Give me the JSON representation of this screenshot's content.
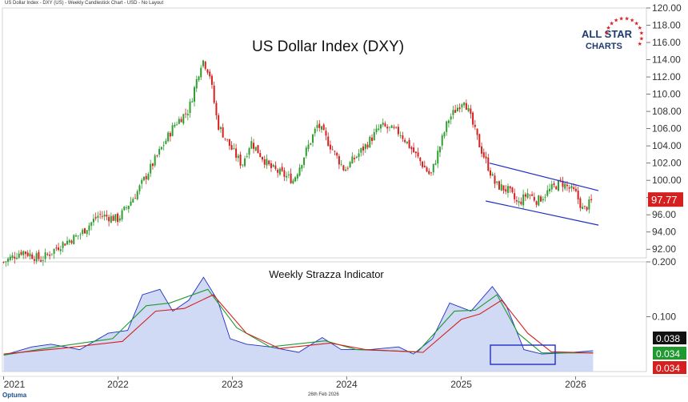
{
  "header": "US Dollar Index - DXY (US) - Weekly Candlestick Chart - USD - No Layout",
  "footer_date": "26th Feb 2026",
  "brand": "Optuma",
  "logo": {
    "line1": "ALL STAR",
    "line2": "CHARTS"
  },
  "colors": {
    "up": "#2e9e2e",
    "down": "#d62020",
    "channel": "#1f2fc4",
    "fill": "#c9d4f2",
    "bluLine": "#1f2fc4",
    "green": "#1f9a2f",
    "red": "#d62020"
  },
  "chart_data": [
    {
      "type": "candlestick",
      "title": "US Dollar Index (DXY)",
      "ylim": [
        91,
        120
      ],
      "yticks": [
        "92.00",
        "94.00",
        "96.00",
        "98.00",
        "100.00",
        "102.00",
        "104.00",
        "106.00",
        "108.00",
        "110.00",
        "112.00",
        "114.00",
        "116.00",
        "118.00",
        "120.00"
      ],
      "last_price": "97.77",
      "close_series": [
        {
          "date": "2021-01-01",
          "close": 90.5
        },
        {
          "date": "2021-03-01",
          "close": 91.8
        },
        {
          "date": "2021-05-01",
          "close": 90.8
        },
        {
          "date": "2021-07-01",
          "close": 92.5
        },
        {
          "date": "2021-09-01",
          "close": 93.7
        },
        {
          "date": "2021-11-01",
          "close": 96.0
        },
        {
          "date": "2022-01-01",
          "close": 95.5
        },
        {
          "date": "2022-03-01",
          "close": 98.5
        },
        {
          "date": "2022-05-01",
          "close": 102.5
        },
        {
          "date": "2022-07-01",
          "close": 106.5
        },
        {
          "date": "2022-08-15",
          "close": 108.2
        },
        {
          "date": "2022-09-27",
          "close": 114.1
        },
        {
          "date": "2022-10-20",
          "close": 112.5
        },
        {
          "date": "2022-11-15",
          "close": 106.5
        },
        {
          "date": "2023-01-01",
          "close": 103.5
        },
        {
          "date": "2023-02-01",
          "close": 101.8
        },
        {
          "date": "2023-03-01",
          "close": 104.5
        },
        {
          "date": "2023-05-01",
          "close": 101.5
        },
        {
          "date": "2023-07-15",
          "close": 100.0
        },
        {
          "date": "2023-10-01",
          "close": 106.5
        },
        {
          "date": "2023-12-25",
          "close": 101.2
        },
        {
          "date": "2024-03-01",
          "close": 104.0
        },
        {
          "date": "2024-04-20",
          "close": 106.3
        },
        {
          "date": "2024-06-20",
          "close": 105.5
        },
        {
          "date": "2024-09-25",
          "close": 100.5
        },
        {
          "date": "2024-11-20",
          "close": 107.0
        },
        {
          "date": "2025-01-10",
          "close": 109.5
        },
        {
          "date": "2025-03-01",
          "close": 104.0
        },
        {
          "date": "2025-04-20",
          "close": 99.5
        },
        {
          "date": "2025-06-01",
          "close": 98.8
        },
        {
          "date": "2025-07-01",
          "close": 97.2
        },
        {
          "date": "2025-08-01",
          "close": 98.5
        },
        {
          "date": "2025-09-01",
          "close": 97.6
        },
        {
          "date": "2025-10-15",
          "close": 99.0
        },
        {
          "date": "2025-11-15",
          "close": 99.8
        },
        {
          "date": "2026-01-01",
          "close": 98.5
        },
        {
          "date": "2026-01-25",
          "close": 96.5
        },
        {
          "date": "2026-02-26",
          "close": 97.77
        }
      ],
      "channel": {
        "upper": [
          {
            "date": "2025-04-01",
            "value": 102.0
          },
          {
            "date": "2026-03-15",
            "value": 98.8
          }
        ],
        "lower": [
          {
            "date": "2025-03-20",
            "value": 97.6
          },
          {
            "date": "2026-03-15",
            "value": 94.8
          }
        ]
      }
    },
    {
      "type": "area",
      "title": "Weekly Strazza Indicator",
      "ylim": [
        0,
        0.2
      ],
      "yticks": [
        "0.100",
        "0.200"
      ],
      "labels": [
        {
          "text": "0.038",
          "bg": "#111111"
        },
        {
          "text": "0.034",
          "bg": "#1f9a2f"
        },
        {
          "text": "0.034",
          "bg": "#d62020"
        }
      ],
      "series": [
        {
          "color": "blue",
          "values": [
            {
              "date": "2021-01-01",
              "value": 0.03
            },
            {
              "date": "2021-04-01",
              "value": 0.045
            },
            {
              "date": "2021-06-01",
              "value": 0.05
            },
            {
              "date": "2021-09-01",
              "value": 0.04
            },
            {
              "date": "2021-12-01",
              "value": 0.07
            },
            {
              "date": "2022-02-01",
              "value": 0.075
            },
            {
              "date": "2022-03-20",
              "value": 0.14
            },
            {
              "date": "2022-05-15",
              "value": 0.15
            },
            {
              "date": "2022-06-25",
              "value": 0.11
            },
            {
              "date": "2022-08-15",
              "value": 0.13
            },
            {
              "date": "2022-10-01",
              "value": 0.172
            },
            {
              "date": "2022-11-15",
              "value": 0.13
            },
            {
              "date": "2022-12-25",
              "value": 0.06
            },
            {
              "date": "2023-02-15",
              "value": 0.05
            },
            {
              "date": "2023-05-01",
              "value": 0.045
            },
            {
              "date": "2023-08-01",
              "value": 0.035
            },
            {
              "date": "2023-10-15",
              "value": 0.062
            },
            {
              "date": "2023-12-15",
              "value": 0.04
            },
            {
              "date": "2024-03-15",
              "value": 0.04
            },
            {
              "date": "2024-06-15",
              "value": 0.045
            },
            {
              "date": "2024-08-01",
              "value": 0.032
            },
            {
              "date": "2024-10-01",
              "value": 0.06
            },
            {
              "date": "2024-11-25",
              "value": 0.125
            },
            {
              "date": "2025-02-01",
              "value": 0.11
            },
            {
              "date": "2025-04-10",
              "value": 0.155
            },
            {
              "date": "2025-05-25",
              "value": 0.12
            },
            {
              "date": "2025-07-20",
              "value": 0.04
            },
            {
              "date": "2025-09-15",
              "value": 0.032
            },
            {
              "date": "2025-12-01",
              "value": 0.034
            },
            {
              "date": "2026-02-26",
              "value": 0.038
            }
          ]
        },
        {
          "color": "green",
          "values": [
            {
              "date": "2021-01-01",
              "value": 0.03
            },
            {
              "date": "2021-06-15",
              "value": 0.045
            },
            {
              "date": "2021-12-15",
              "value": 0.06
            },
            {
              "date": "2022-04-01",
              "value": 0.12
            },
            {
              "date": "2022-06-15",
              "value": 0.125
            },
            {
              "date": "2022-10-15",
              "value": 0.15
            },
            {
              "date": "2023-01-15",
              "value": 0.08
            },
            {
              "date": "2023-05-01",
              "value": 0.045
            },
            {
              "date": "2023-10-25",
              "value": 0.056
            },
            {
              "date": "2024-02-01",
              "value": 0.04
            },
            {
              "date": "2024-08-15",
              "value": 0.036
            },
            {
              "date": "2024-12-10",
              "value": 0.11
            },
            {
              "date": "2025-02-15",
              "value": 0.112
            },
            {
              "date": "2025-04-25",
              "value": 0.14
            },
            {
              "date": "2025-07-01",
              "value": 0.07
            },
            {
              "date": "2025-09-15",
              "value": 0.034
            },
            {
              "date": "2026-02-26",
              "value": 0.034
            }
          ]
        },
        {
          "color": "red",
          "values": [
            {
              "date": "2021-01-01",
              "value": 0.032
            },
            {
              "date": "2021-07-01",
              "value": 0.042
            },
            {
              "date": "2022-01-15",
              "value": 0.055
            },
            {
              "date": "2022-05-01",
              "value": 0.11
            },
            {
              "date": "2022-08-01",
              "value": 0.115
            },
            {
              "date": "2022-11-01",
              "value": 0.14
            },
            {
              "date": "2023-02-15",
              "value": 0.07
            },
            {
              "date": "2023-06-01",
              "value": 0.042
            },
            {
              "date": "2023-11-10",
              "value": 0.052
            },
            {
              "date": "2024-03-01",
              "value": 0.04
            },
            {
              "date": "2024-09-01",
              "value": 0.035
            },
            {
              "date": "2025-01-01",
              "value": 0.095
            },
            {
              "date": "2025-03-01",
              "value": 0.105
            },
            {
              "date": "2025-05-10",
              "value": 0.13
            },
            {
              "date": "2025-08-01",
              "value": 0.07
            },
            {
              "date": "2025-10-15",
              "value": 0.036
            },
            {
              "date": "2026-02-26",
              "value": 0.034
            }
          ]
        }
      ]
    }
  ],
  "x_axis": {
    "ticks": [
      "2021",
      "2022",
      "2023",
      "2024",
      "2025",
      "2026"
    ]
  }
}
